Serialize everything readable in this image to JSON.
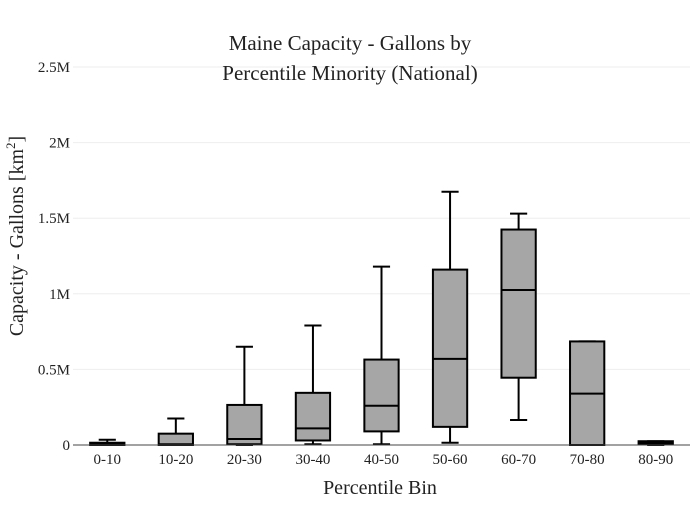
{
  "chart_data": {
    "type": "box",
    "title_lines": [
      "Maine Capacity - Gallons by",
      "Percentile Minority (National)"
    ],
    "xlabel": "Percentile Bin",
    "ylabel_main": "Capacity - Gallons  [km",
    "ylabel_sup": "2",
    "ylabel_end": "]",
    "ylim": [
      0,
      2500000
    ],
    "y_ticks": [
      {
        "value": 0,
        "label": "0"
      },
      {
        "value": 500000,
        "label": "0.5M"
      },
      {
        "value": 1000000,
        "label": "1M"
      },
      {
        "value": 1500000,
        "label": "1.5M"
      },
      {
        "value": 2000000,
        "label": "2M"
      },
      {
        "value": 2500000,
        "label": "2.5M"
      }
    ],
    "grid": true,
    "colors": {
      "box_fill": "#a6a6a6",
      "stroke": "#000000",
      "grid": "#eeeeee",
      "axis": "#444444"
    },
    "categories": [
      "0-10",
      "10-20",
      "20-30",
      "30-40",
      "40-50",
      "50-60",
      "60-70",
      "70-80",
      "80-90"
    ],
    "boxes": [
      {
        "min": 0,
        "q1": 0,
        "median": 5000,
        "q3": 15000,
        "max": 35000
      },
      {
        "min": 0,
        "q1": 0,
        "median": 5000,
        "q3": 75000,
        "max": 175000
      },
      {
        "min": 0,
        "q1": 5000,
        "median": 40000,
        "q3": 265000,
        "max": 650000
      },
      {
        "min": 5000,
        "q1": 30000,
        "median": 110000,
        "q3": 345000,
        "max": 790000
      },
      {
        "min": 5000,
        "q1": 90000,
        "median": 260000,
        "q3": 565000,
        "max": 1180000
      },
      {
        "min": 15000,
        "q1": 120000,
        "median": 570000,
        "q3": 1160000,
        "max": 1675000
      },
      {
        "min": 165000,
        "q1": 445000,
        "median": 1025000,
        "q3": 1425000,
        "max": 1530000
      },
      {
        "min": 0,
        "q1": 0,
        "median": 340000,
        "q3": 685000,
        "max": 685000
      },
      {
        "min": 0,
        "q1": 10000,
        "median": 15000,
        "q3": 25000,
        "max": 25000
      }
    ]
  }
}
